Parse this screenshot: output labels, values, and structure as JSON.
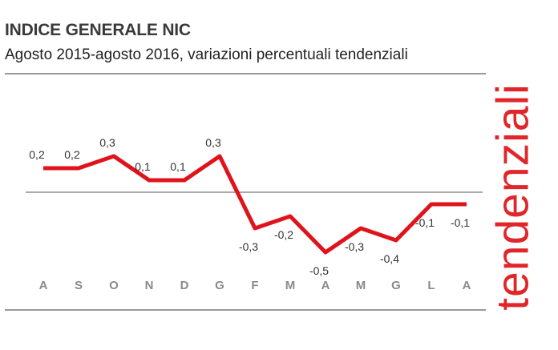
{
  "title": "INDICE GENERALE NIC",
  "subtitle": "Agosto 2015-agosto 2016, variazioni percentuali tendenziali",
  "side_label": "tendenziali",
  "colors": {
    "line": "#e0131b",
    "rules": "#333333",
    "zero_line": "#555555",
    "side_label": "#e0262a",
    "tick_text": "#8a8a8a"
  },
  "chart_data": {
    "type": "line",
    "categories": [
      "A",
      "S",
      "O",
      "N",
      "D",
      "G",
      "F",
      "M",
      "A",
      "M",
      "G",
      "L",
      "A"
    ],
    "values": [
      0.2,
      0.2,
      0.3,
      0.1,
      0.1,
      0.3,
      -0.3,
      -0.2,
      -0.5,
      -0.3,
      -0.4,
      -0.1,
      -0.1
    ],
    "data_labels": [
      "0,2",
      "0,2",
      "0,3",
      "0,1",
      "0,1",
      "0,3",
      "-0,3",
      "-0,2",
      "-0,5",
      "-0,3",
      "-0,4",
      "-0,1",
      "-0,1"
    ],
    "title": "INDICE GENERALE NIC",
    "subtitle": "Agosto 2015-agosto 2016, variazioni percentuali tendenziali",
    "xlabel": "",
    "ylabel": "",
    "ylim": [
      -0.5,
      0.3
    ],
    "zero_line": true,
    "grid": false,
    "legend": "none"
  }
}
